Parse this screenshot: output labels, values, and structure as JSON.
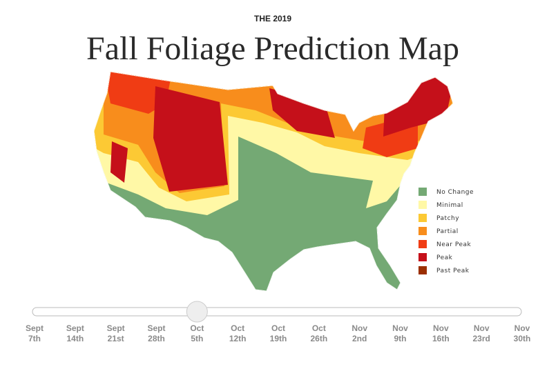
{
  "header": {
    "kicker": "THE 2019",
    "title": "Fall Foliage Prediction Map"
  },
  "legend": [
    {
      "label": "No Change",
      "color": "#74a974"
    },
    {
      "label": "Minimal",
      "color": "#fff8a6"
    },
    {
      "label": "Patchy",
      "color": "#fcc934"
    },
    {
      "label": "Partial",
      "color": "#f88d1c"
    },
    {
      "label": "Near Peak",
      "color": "#f03c14"
    },
    {
      "label": "Peak",
      "color": "#c5101a"
    },
    {
      "label": "Past Peak",
      "color": "#9b2f02"
    }
  ],
  "timeline": {
    "selected": 4,
    "dates": [
      {
        "month": "Sept",
        "day": "7th"
      },
      {
        "month": "Sept",
        "day": "14th"
      },
      {
        "month": "Sept",
        "day": "21st"
      },
      {
        "month": "Sept",
        "day": "28th"
      },
      {
        "month": "Oct",
        "day": "5th"
      },
      {
        "month": "Oct",
        "day": "12th"
      },
      {
        "month": "Oct",
        "day": "19th"
      },
      {
        "month": "Oct",
        "day": "26th"
      },
      {
        "month": "Nov",
        "day": "2nd"
      },
      {
        "month": "Nov",
        "day": "9th"
      },
      {
        "month": "Nov",
        "day": "16th"
      },
      {
        "month": "Nov",
        "day": "23rd"
      },
      {
        "month": "Nov",
        "day": "30th"
      }
    ]
  }
}
